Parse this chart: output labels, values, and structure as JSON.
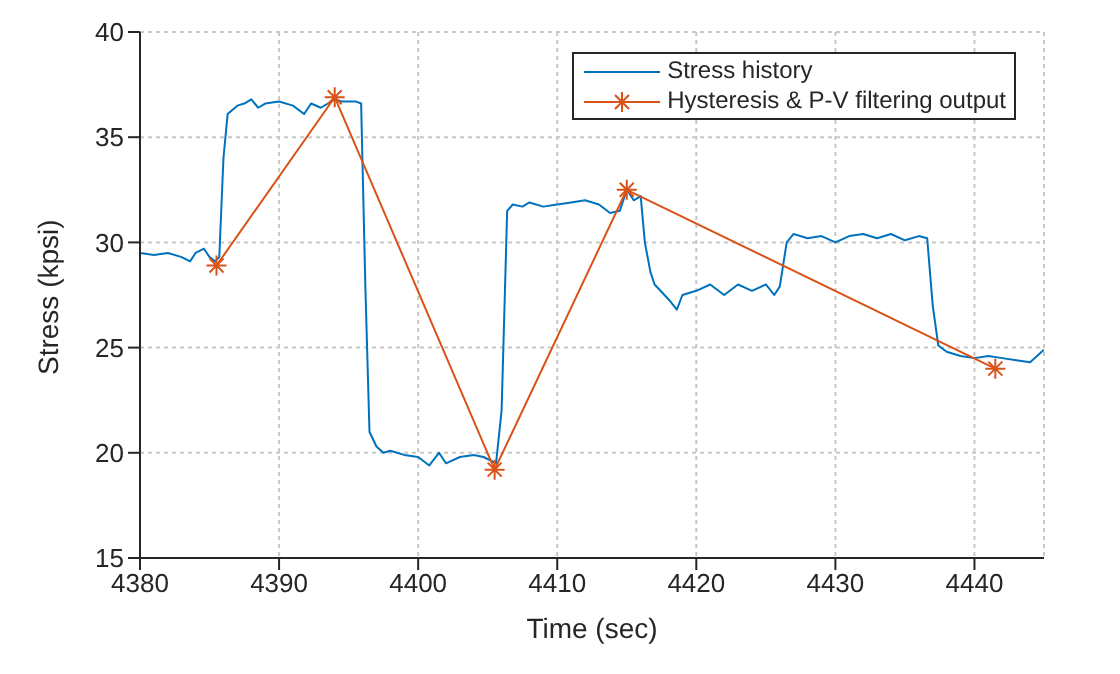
{
  "chart_data": {
    "type": "line",
    "xlabel": "Time (sec)",
    "ylabel": "Stress (kpsi)",
    "xlim": [
      4380,
      4445
    ],
    "xticks": [
      4380,
      4390,
      4400,
      4410,
      4420,
      4430,
      4440
    ],
    "ylim": [
      15,
      40
    ],
    "yticks": [
      15,
      20,
      25,
      30,
      35,
      40
    ],
    "grid": true,
    "legend": "top right",
    "series": [
      {
        "name": "Stress history",
        "color": "#0072bd",
        "marker": "none",
        "x": [
          4380,
          4381,
          4382,
          4383,
          4383.6,
          4384,
          4384.6,
          4385,
          4385.4,
          4385.7,
          4386,
          4386.3,
          4387,
          4387.5,
          4388,
          4388.5,
          4389,
          4390,
          4391,
          4391.8,
          4392.3,
          4393,
          4394,
          4394.5,
          4395.5,
          4395.9,
          4396.2,
          4396.5,
          4397,
          4397.5,
          4398,
          4399,
          4400,
          4400.8,
          4401.5,
          4402,
          4403,
          4404,
          4404.7,
          4405.3,
          4405.6,
          4406,
          4406.4,
          4406.8,
          4407.5,
          4408,
          4409,
          4410,
          4411,
          4412,
          4413,
          4413.8,
          4414.5,
          4415,
          4415.5,
          4416,
          4416.3,
          4416.7,
          4417,
          4418,
          4418.6,
          4419,
          4420,
          4421,
          4422,
          4423,
          4424,
          4425,
          4425.6,
          4426,
          4426.5,
          4427,
          4428,
          4429,
          4430,
          4431,
          4432,
          4433,
          4434,
          4435,
          4436,
          4436.6,
          4437,
          4437.4,
          4438,
          4439,
          4440,
          4441,
          4442,
          4443,
          4444,
          4445
        ],
        "values": [
          29.5,
          29.4,
          29.5,
          29.3,
          29.1,
          29.5,
          29.7,
          29.3,
          29.1,
          29.3,
          34,
          36.1,
          36.5,
          36.6,
          36.8,
          36.4,
          36.6,
          36.7,
          36.5,
          36.1,
          36.6,
          36.4,
          36.8,
          36.7,
          36.7,
          36.6,
          28,
          21,
          20.3,
          20.0,
          20.1,
          19.9,
          19.8,
          19.4,
          20.0,
          19.5,
          19.8,
          19.9,
          19.8,
          19.6,
          19.5,
          22,
          31.5,
          31.8,
          31.7,
          31.9,
          31.7,
          31.8,
          31.9,
          32.0,
          31.8,
          31.4,
          31.5,
          32.5,
          32.0,
          32.2,
          30,
          28.6,
          28.0,
          27.3,
          26.8,
          27.5,
          27.7,
          28.0,
          27.5,
          28.0,
          27.7,
          28.0,
          27.5,
          27.9,
          30.0,
          30.4,
          30.2,
          30.3,
          30.0,
          30.3,
          30.4,
          30.2,
          30.4,
          30.1,
          30.3,
          30.2,
          27,
          25.1,
          24.8,
          24.6,
          24.5,
          24.6,
          24.5,
          24.4,
          24.3,
          24.9
        ]
      },
      {
        "name": "Hysteresis & P-V filtering output",
        "color": "#d95319",
        "marker": "cross",
        "x": [
          4385.5,
          4394,
          4405.5,
          4415,
          4441.5
        ],
        "values": [
          28.9,
          36.9,
          19.2,
          32.5,
          24.0
        ]
      }
    ]
  }
}
